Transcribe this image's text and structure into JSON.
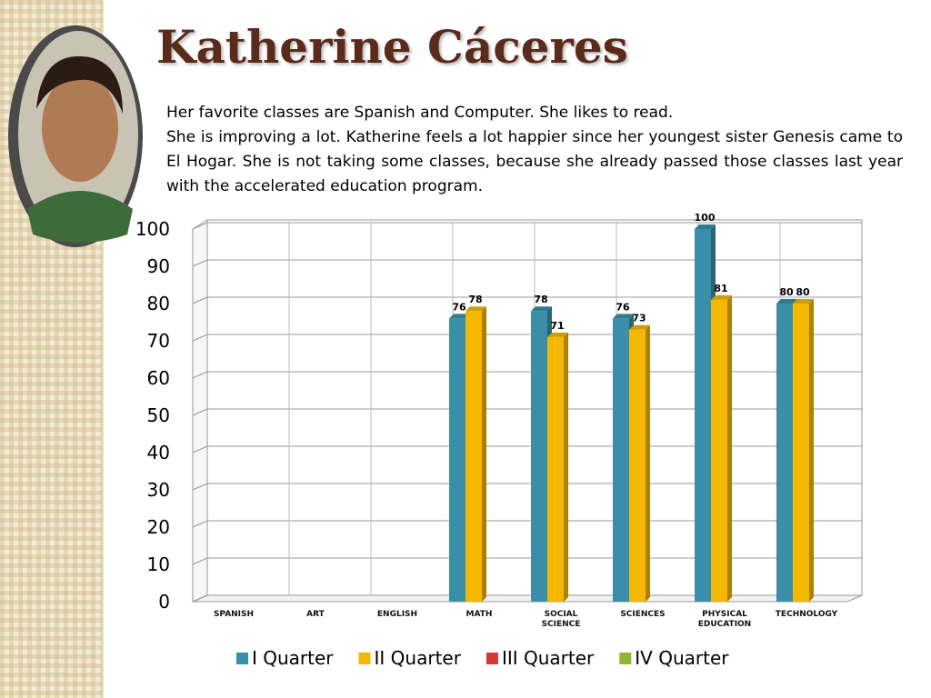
{
  "slide": {
    "title": "Katherine Cáceres",
    "paragraphs": [
      "Her favorite classes are Spanish and Computer.  She likes to read.",
      "She is improving a lot.  Katherine feels a lot happier since her youngest sister Genesis came to El Hogar.  She is not taking  some classes, because she already passed those classes last year with the accelerated education  program."
    ]
  },
  "chart_data": {
    "type": "bar",
    "categories": [
      "SPANISH",
      "ART",
      "ENGLISH",
      "MATH",
      "SOCIAL SCIENCE",
      "SCIENCES",
      "PHYSICAL EDUCATION",
      "TECHNOLOGY"
    ],
    "series": [
      {
        "name": "I Quarter",
        "color": "#3a8fa8",
        "values": [
          null,
          null,
          null,
          76,
          78,
          76,
          100,
          80
        ]
      },
      {
        "name": "II Quarter",
        "color": "#f5b800",
        "values": [
          null,
          null,
          null,
          78,
          71,
          73,
          81,
          80
        ]
      },
      {
        "name": "III Quarter",
        "color": "#d23a3a",
        "values": [
          null,
          null,
          null,
          null,
          null,
          null,
          null,
          null
        ]
      },
      {
        "name": "IV Quarter",
        "color": "#8ab833",
        "values": [
          null,
          null,
          null,
          null,
          null,
          null,
          null,
          null
        ]
      }
    ],
    "ylim": [
      0,
      100
    ],
    "yticks": [
      0,
      10,
      20,
      30,
      40,
      50,
      60,
      70,
      80,
      90,
      100
    ],
    "grid": true
  }
}
